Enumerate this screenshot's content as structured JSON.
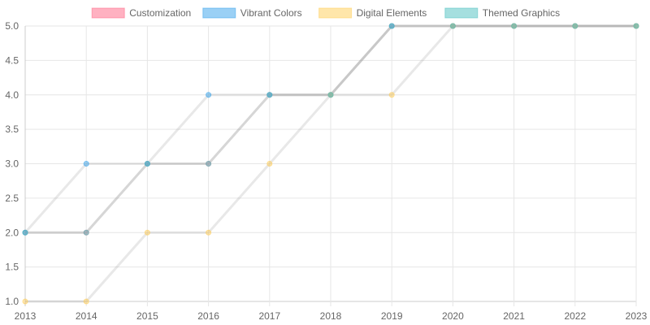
{
  "chart_data": {
    "type": "line",
    "title": "",
    "xlabel": "",
    "ylabel": "",
    "x": [
      "2013",
      "2014",
      "2015",
      "2016",
      "2017",
      "2018",
      "2019",
      "2020",
      "2021",
      "2022",
      "2023"
    ],
    "ylim": [
      1.0,
      5.0
    ],
    "yticks": [
      "1.0",
      "1.5",
      "2.0",
      "2.5",
      "3.0",
      "3.5",
      "4.0",
      "4.5",
      "5.0"
    ],
    "grid": true,
    "legend_position": "top-center",
    "series": [
      {
        "name": "Customization",
        "values": [
          2,
          2,
          3,
          3,
          4,
          4,
          5,
          5,
          5,
          5,
          5
        ],
        "color": "#ff6384",
        "fill": "#ffb1c1"
      },
      {
        "name": "Vibrant Colors",
        "values": [
          2,
          3,
          3,
          4,
          4,
          4,
          5,
          5,
          5,
          5,
          5
        ],
        "color": "#36a2eb",
        "fill": "#9ad0f5"
      },
      {
        "name": "Digital Elements",
        "values": [
          1,
          1,
          2,
          2,
          3,
          4,
          4,
          5,
          5,
          5,
          5
        ],
        "color": "#ffcd56",
        "fill": "#ffe6aa"
      },
      {
        "name": "Themed Graphics",
        "values": [
          2,
          2,
          3,
          3,
          4,
          4,
          5,
          5,
          5,
          5,
          5
        ],
        "color": "#4bc0c0",
        "fill": "#a5dfdf"
      }
    ]
  }
}
